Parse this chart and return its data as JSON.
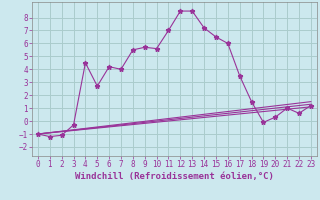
{
  "xlabel": "Windchill (Refroidissement éolien,°C)",
  "background_color": "#cce8ee",
  "grid_color": "#aacccc",
  "line_color": "#993399",
  "xlim": [
    -0.5,
    23.5
  ],
  "ylim": [
    -2.7,
    9.2
  ],
  "yticks": [
    -2,
    -1,
    0,
    1,
    2,
    3,
    4,
    5,
    6,
    7,
    8
  ],
  "xticks": [
    0,
    1,
    2,
    3,
    4,
    5,
    6,
    7,
    8,
    9,
    10,
    11,
    12,
    13,
    14,
    15,
    16,
    17,
    18,
    19,
    20,
    21,
    22,
    23
  ],
  "series1_x": [
    0,
    1,
    2,
    3,
    4,
    5,
    6,
    7,
    8,
    9,
    10,
    11,
    12,
    13,
    14,
    15,
    16,
    17,
    18,
    19,
    20,
    21,
    22,
    23
  ],
  "series1_y": [
    -1.0,
    -1.2,
    -1.1,
    -0.3,
    4.5,
    2.7,
    4.2,
    4.0,
    5.5,
    5.7,
    5.6,
    7.0,
    8.5,
    8.5,
    7.2,
    6.5,
    6.0,
    3.5,
    1.5,
    -0.1,
    0.3,
    1.0,
    0.6,
    1.2
  ],
  "series2_x": [
    0,
    23
  ],
  "series2_y": [
    -1.0,
    1.1
  ],
  "series3_x": [
    0,
    23
  ],
  "series3_y": [
    -1.0,
    1.3
  ],
  "series4_x": [
    0,
    23
  ],
  "series4_y": [
    -1.0,
    1.5
  ],
  "xlabel_fontsize": 6.5,
  "tick_fontsize": 5.5
}
